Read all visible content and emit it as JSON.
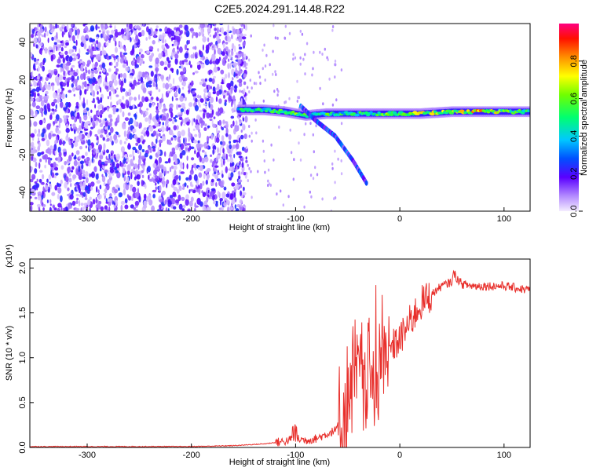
{
  "title": "C2E5.2024.291.14.48.R22",
  "chart_data": [
    {
      "type": "heatmap",
      "xlabel": "Height of straight line (km)",
      "ylabel": "Frequency (Hz)",
      "xlim": [
        -355,
        125
      ],
      "ylim": [
        -50,
        50
      ],
      "xticks": [
        -300,
        -200,
        -100,
        0,
        100
      ],
      "yticks": [
        -40,
        -20,
        0,
        20,
        40
      ],
      "colorbar": {
        "label": "Normalized spectral amplitude",
        "range": [
          0,
          1
        ],
        "ticks": [
          0.0,
          0.2,
          0.4,
          0.6,
          0.8
        ]
      },
      "features": {
        "noise_region_x": [
          -355,
          -155
        ],
        "main_band": [
          {
            "x": -155,
            "f": 4,
            "amp": 0.55
          },
          {
            "x": -130,
            "f": 4,
            "amp": 0.55
          },
          {
            "x": -110,
            "f": 3,
            "amp": 0.6
          },
          {
            "x": -90,
            "f": 1,
            "amp": 0.7
          },
          {
            "x": -70,
            "f": 2,
            "amp": 0.6
          },
          {
            "x": -45,
            "f": 2,
            "amp": 0.55
          },
          {
            "x": -20,
            "f": 2,
            "amp": 0.6
          },
          {
            "x": 0,
            "f": 2,
            "amp": 0.8
          },
          {
            "x": 20,
            "f": 2,
            "amp": 0.8
          },
          {
            "x": 50,
            "f": 3,
            "amp": 0.75
          },
          {
            "x": 75,
            "f": 3,
            "amp": 0.85
          },
          {
            "x": 100,
            "f": 3,
            "amp": 0.7
          },
          {
            "x": 125,
            "f": 3,
            "amp": 0.6
          }
        ],
        "descending_branch": [
          {
            "x": -95,
            "f": 6
          },
          {
            "x": -80,
            "f": -2
          },
          {
            "x": -62,
            "f": -10
          },
          {
            "x": -45,
            "f": -23
          },
          {
            "x": -32,
            "f": -35
          }
        ]
      }
    },
    {
      "type": "line",
      "xlabel": "Height of straight line (km)",
      "ylabel": "SNR (10 * v/v)",
      "multiplier_label": "(x10⁴)",
      "xlim": [
        -355,
        125
      ],
      "ylim": [
        0,
        2.1
      ],
      "xticks": [
        -300,
        -200,
        -100,
        0,
        100
      ],
      "yticks": [
        0.0,
        0.5,
        1.0,
        1.5,
        2.0
      ],
      "series": [
        {
          "color": "#e8302c",
          "x": [
            -355,
            -300,
            -250,
            -200,
            -160,
            -130,
            -110,
            -100,
            -90,
            -80,
            -70,
            -60,
            -55,
            -50,
            -45,
            -40,
            -35,
            -30,
            -25,
            -20,
            -15,
            -12,
            -8,
            -5,
            0,
            5,
            10,
            15,
            20,
            25,
            30,
            35,
            40,
            45,
            50,
            52,
            55,
            60,
            70,
            80,
            90,
            100,
            110,
            120,
            125
          ],
          "y": [
            0.01,
            0.01,
            0.01,
            0.01,
            0.02,
            0.04,
            0.07,
            0.1,
            0.08,
            0.1,
            0.15,
            0.2,
            0.3,
            0.55,
            0.75,
            0.9,
            0.75,
            0.9,
            0.6,
            0.95,
            1.0,
            1.05,
            1.1,
            1.15,
            1.2,
            1.3,
            1.4,
            1.5,
            1.6,
            1.65,
            1.7,
            1.75,
            1.8,
            1.82,
            1.85,
            1.95,
            1.88,
            1.82,
            1.8,
            1.8,
            1.8,
            1.8,
            1.78,
            1.76,
            1.76
          ]
        }
      ]
    }
  ]
}
